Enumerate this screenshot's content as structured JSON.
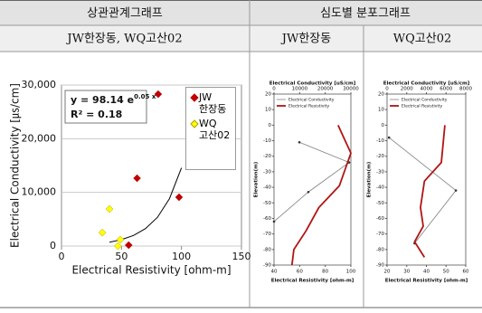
{
  "table": {
    "headers": [
      "상관관계그래프",
      "심도별 분포그래프"
    ],
    "subheaders": [
      "JW한장동, WQ고산02",
      "JW한장동",
      "WQ고산02"
    ]
  },
  "chart_data": [
    {
      "type": "scatter",
      "xlabel": "Electrical Resistivity [ohm-m]",
      "ylabel": "Electrical Conductivity [㎲/cm]",
      "xlim": [
        0,
        150
      ],
      "xticks": [
        0,
        50,
        100,
        150
      ],
      "ylim": [
        0,
        30000
      ],
      "yticks": [
        0,
        {
          "value": 10000,
          "label": "10,000"
        },
        {
          "value": 20000,
          "label": "20,000"
        },
        {
          "value": 30000,
          "label": "30,000"
        }
      ],
      "grid": true,
      "series": [
        {
          "name": "JW 한장동",
          "color": "#c00000",
          "marker": "diamond",
          "x": [
            80.6,
            63,
            98,
            56
          ],
          "values": [
            28300,
            12640,
            9100,
            170
          ]
        },
        {
          "name": "WQ 고산02",
          "color": "#ffff00",
          "marker": "diamond",
          "x": [
            40,
            34,
            47,
            49
          ],
          "values": [
            6900,
            2500,
            0,
            1200
          ]
        }
      ],
      "trendline": {
        "color": "#000000",
        "x": [
          40,
          50,
          60,
          70,
          80,
          90,
          100
        ],
        "values": [
          725,
          1196,
          1971,
          3250,
          5358,
          8833,
          14565
        ]
      },
      "equation_base": "y = 98.14 e",
      "equation_exponent": "0.05 x",
      "r_squared": "R² = 0.18"
    },
    {
      "type": "depth-profile",
      "top_label": "Electrical Conductivity [uS/cm]",
      "bottom_label": "Electrical Resistivity [ohm-m]",
      "ylabel": "Elevation(m)",
      "x2lim": [
        0,
        30000
      ],
      "x2ticks": [
        0,
        10000,
        20000,
        30000
      ],
      "xlim": [
        40,
        100
      ],
      "xticks": [
        40,
        60,
        80,
        100
      ],
      "ylim": [
        -90,
        20
      ],
      "yticks": [
        20,
        10,
        0,
        -10,
        -20,
        -30,
        -40,
        -50,
        -60,
        -70,
        -80,
        -90
      ],
      "series": [
        {
          "name": "Electrical Conductivity",
          "color": "#808080",
          "axis": "x2",
          "y": [
            -11,
            -24,
            -43,
            -62
          ],
          "values": [
            9900,
            29300,
            13400,
            0
          ]
        },
        {
          "name": "Electrical Resistivity",
          "color": "#b01515",
          "y": [
            0,
            -18,
            -39,
            -53,
            -68,
            -80,
            -90
          ],
          "values": [
            90,
            100,
            91,
            75,
            65,
            55.5,
            54
          ]
        }
      ]
    },
    {
      "type": "depth-profile",
      "top_label": "Electrical Conductivity [uS/cm]",
      "bottom_label": "Electrical Resistivity [ohm-m]",
      "ylabel": "Elevation(m)",
      "x2lim": [
        0,
        8000
      ],
      "x2ticks": [
        0,
        2000,
        4000,
        6000,
        8000
      ],
      "xlim": [
        20,
        60
      ],
      "xticks": [
        20,
        30,
        40,
        50,
        60
      ],
      "ylim": [
        -90,
        20
      ],
      "yticks": [
        20,
        10,
        0,
        -10,
        -20,
        -30,
        -40,
        -50,
        -60,
        -70,
        -80,
        -90
      ],
      "series": [
        {
          "name": "Electrical Conductivity",
          "color": "#808080",
          "axis": "x2",
          "y": [
            -8,
            -42,
            -76
          ],
          "values": [
            200,
            7000,
            2800
          ]
        },
        {
          "name": "Electrical Resistivity",
          "color": "#b01515",
          "y": [
            0,
            -24,
            -36,
            -53,
            -65,
            -75,
            -85
          ],
          "values": [
            49.4,
            47.6,
            39,
            37,
            38.4,
            34,
            39
          ]
        }
      ]
    }
  ]
}
